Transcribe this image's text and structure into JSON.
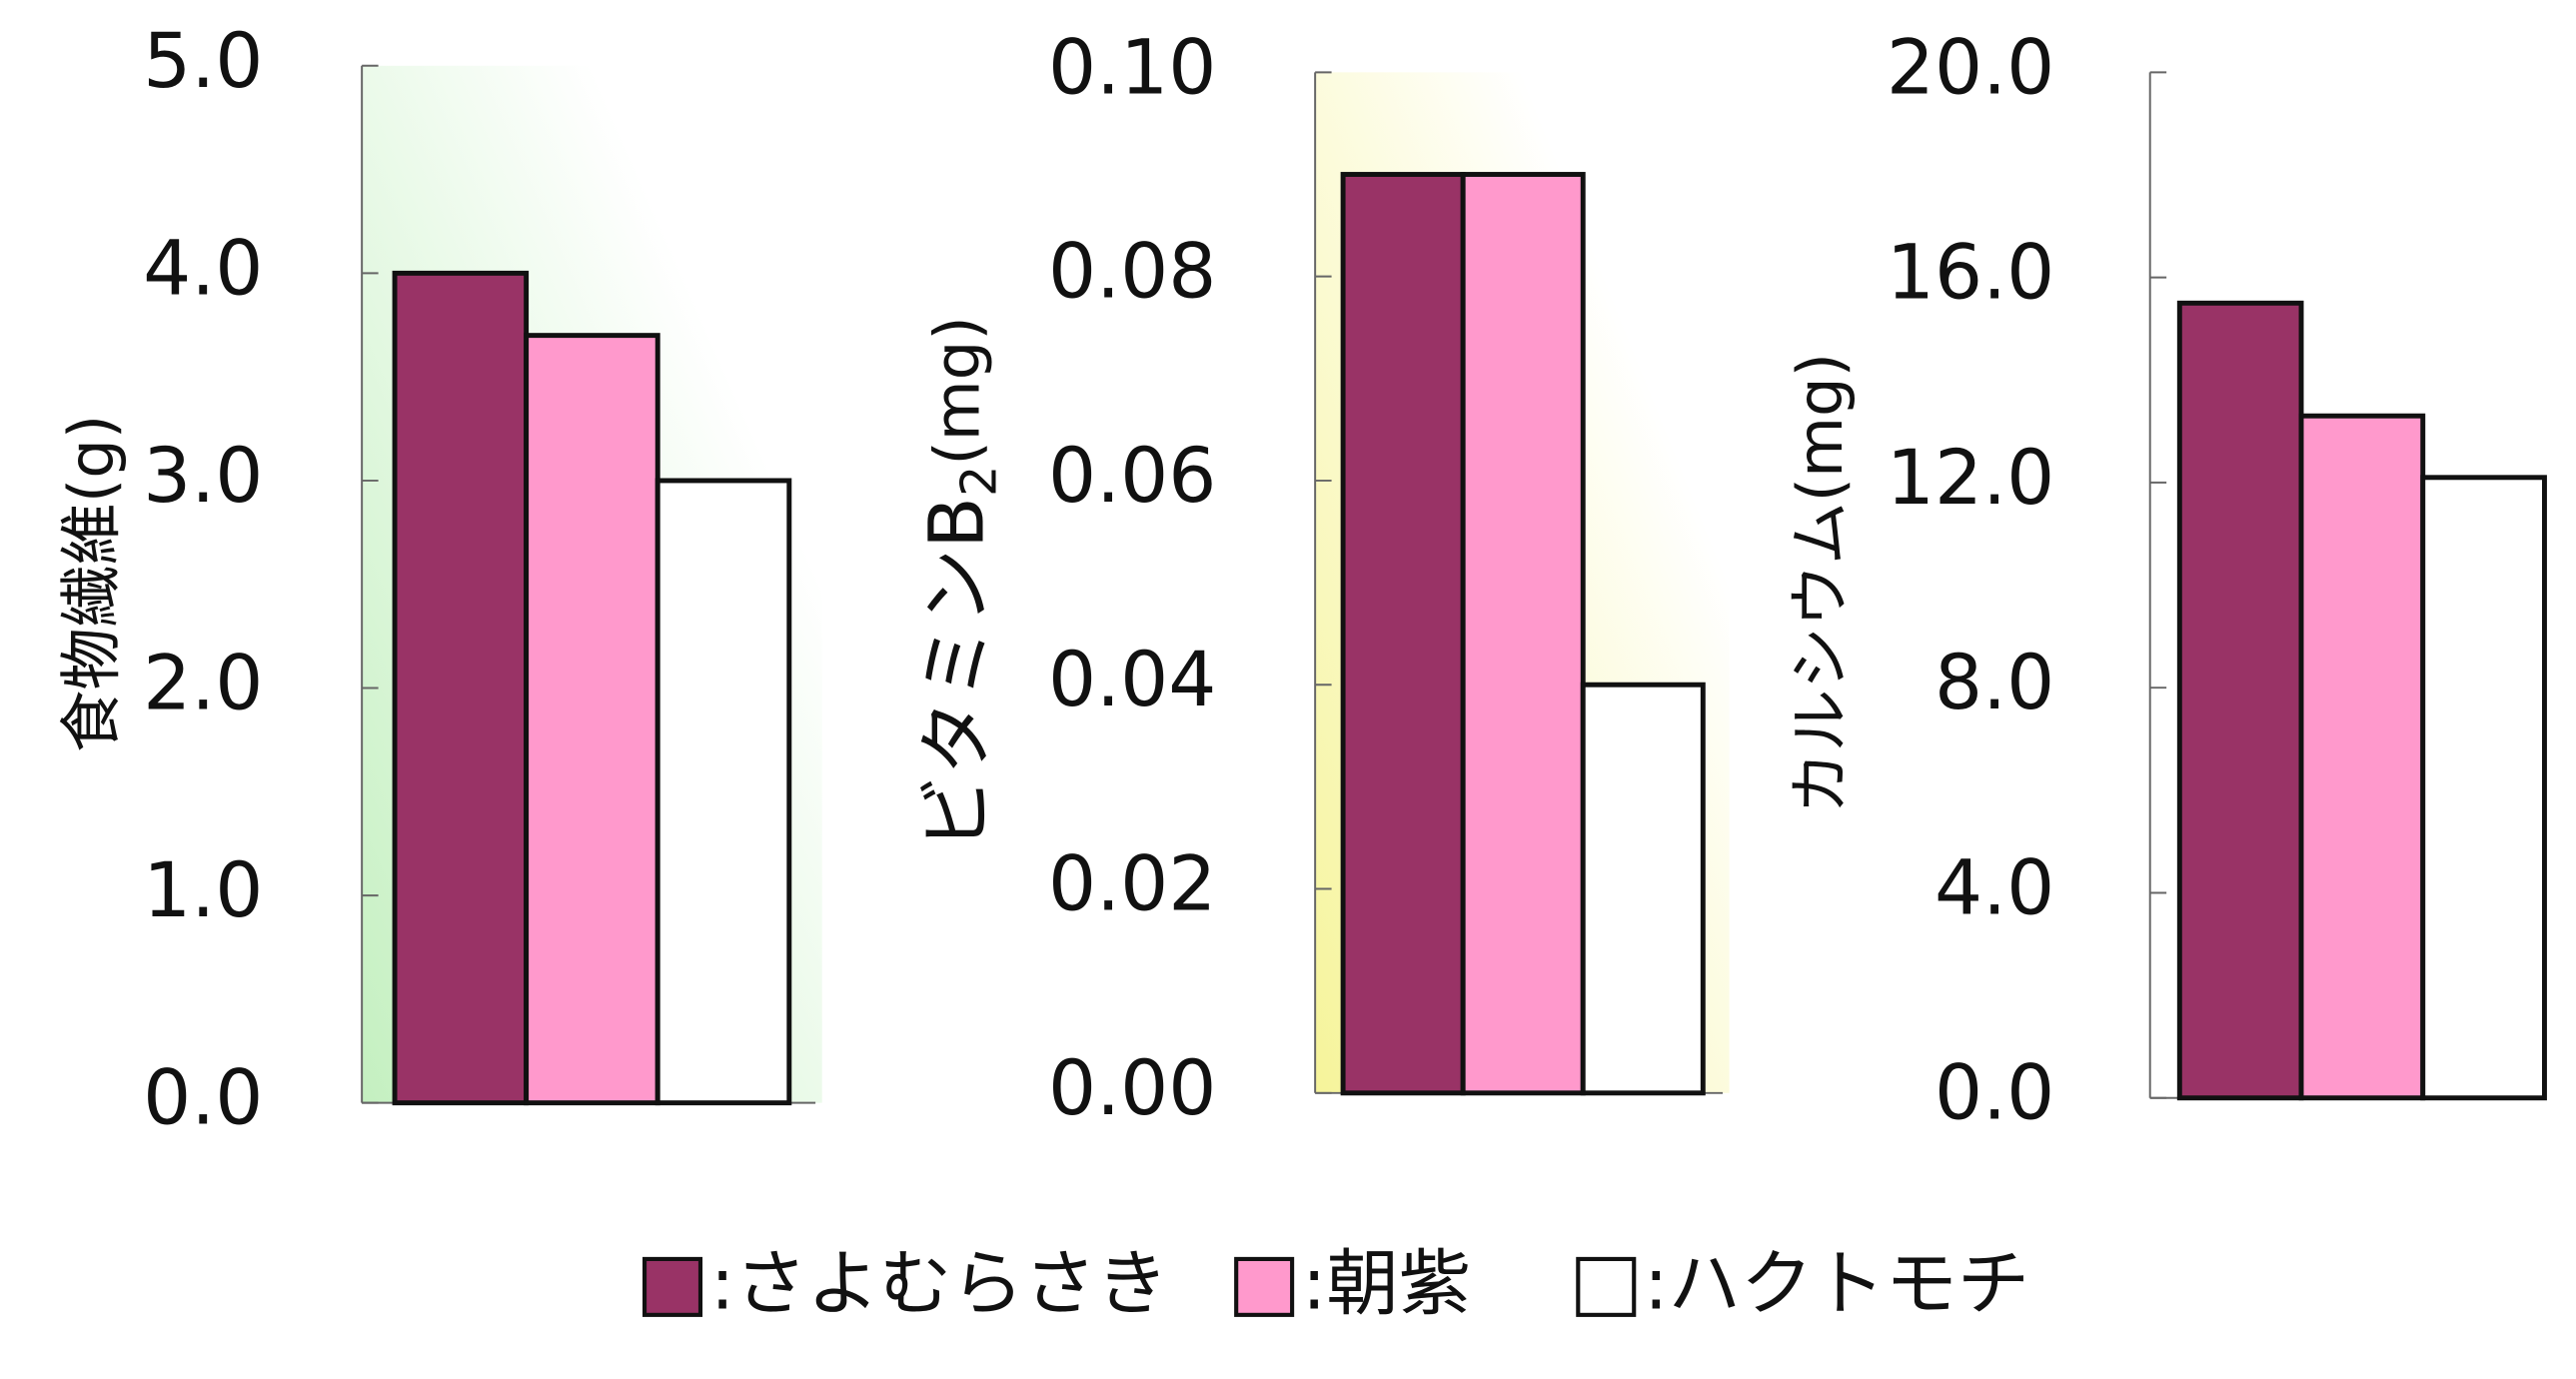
{
  "chart_data": [
    {
      "type": "bar",
      "ylabel": "食物繊維(g)",
      "values": [
        4.0,
        3.7,
        3.0
      ],
      "background": "#c4f0c0",
      "ylim": [
        0,
        5
      ],
      "yticks": [
        {
          "value": 0,
          "label": "0.0"
        },
        {
          "value": 1,
          "label": "1.0"
        },
        {
          "value": 2,
          "label": "2.0"
        },
        {
          "value": 3,
          "label": "3.0"
        },
        {
          "value": 4,
          "label": "4.0"
        },
        {
          "value": 5,
          "label": "5.0"
        }
      ]
    },
    {
      "type": "bar",
      "ylabel": {
        "text": "ビタミンB",
        "subscript": "2",
        "unit": "(mg)"
      },
      "values": [
        0.09,
        0.09,
        0.04
      ],
      "background": "#f6f49a",
      "ylim": [
        0,
        0.1
      ],
      "yticks": [
        {
          "value": 0,
          "label": "0.00"
        },
        {
          "value": 0.02,
          "label": "0.02"
        },
        {
          "value": 0.04,
          "label": "0.04"
        },
        {
          "value": 0.06,
          "label": "0.06"
        },
        {
          "value": 0.08,
          "label": "0.08"
        },
        {
          "value": 0.1,
          "label": "0.10"
        }
      ]
    },
    {
      "type": "bar",
      "ylabel": "カルシウム(mg)",
      "values": [
        15.5,
        13.3,
        12.1
      ],
      "ylim": [
        0,
        20
      ],
      "yticks": [
        {
          "value": 0,
          "label": "0.0"
        },
        {
          "value": 4,
          "label": "4.0"
        },
        {
          "value": 8,
          "label": "8.0"
        },
        {
          "value": 12,
          "label": "12.0"
        },
        {
          "value": 16,
          "label": "16.0"
        },
        {
          "value": 20,
          "label": "20.0"
        }
      ]
    }
  ],
  "legend": {
    "separator": ":",
    "series": [
      {
        "name": "さよむらさき",
        "color": "#993366"
      },
      {
        "name": "朝紫",
        "color": "#ff99cc"
      },
      {
        "name": "ハクトモチ",
        "color": "#ffffff"
      }
    ]
  }
}
